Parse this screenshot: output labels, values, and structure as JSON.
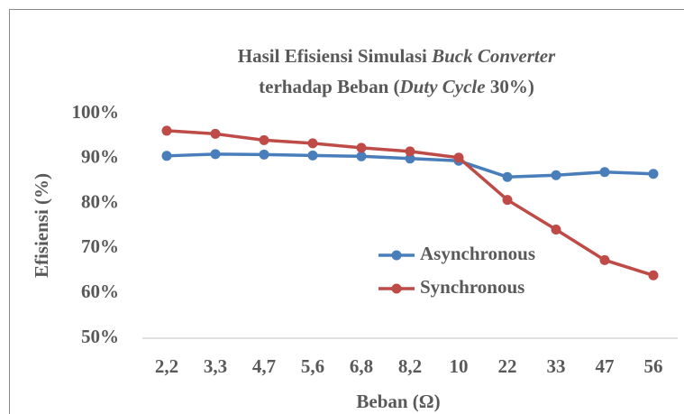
{
  "chart_data": {
    "type": "line",
    "title": [
      [
        {
          "text": "Hasil Efisiensi Simulasi ",
          "italic": false
        },
        {
          "text": "Buck Converter",
          "italic": true
        }
      ],
      [
        {
          "text": "terhadap Beban (",
          "italic": false
        },
        {
          "text": "Duty Cycle",
          "italic": true
        },
        {
          "text": " 30%)",
          "italic": false
        }
      ]
    ],
    "x_label": "Beban (Ω)",
    "y_label": "Efisiensi (%)",
    "categories": [
      "2,2",
      "3,3",
      "4,7",
      "5,6",
      "6,8",
      "8,2",
      "10",
      "22",
      "33",
      "47",
      "56"
    ],
    "series": [
      {
        "name": "Asynchronous",
        "color": "#4a7ebb",
        "values": [
          90.6,
          91.0,
          90.9,
          90.7,
          90.5,
          90.0,
          89.5,
          85.9,
          86.3,
          87.0,
          86.6
        ]
      },
      {
        "name": "Synchronous",
        "color": "#be4b48",
        "values": [
          96.2,
          95.5,
          94.1,
          93.4,
          92.4,
          91.6,
          90.2,
          80.8,
          74.2,
          67.4,
          64.0
        ]
      }
    ],
    "ylim": [
      50,
      100
    ],
    "yticks": [
      {
        "value": 50,
        "label": "50%"
      },
      {
        "value": 60,
        "label": "60%"
      },
      {
        "value": 70,
        "label": "70%"
      },
      {
        "value": 80,
        "label": "80%"
      },
      {
        "value": 90,
        "label": "90%"
      },
      {
        "value": 100,
        "label": "100%"
      }
    ],
    "grid": false,
    "legend": "right"
  }
}
